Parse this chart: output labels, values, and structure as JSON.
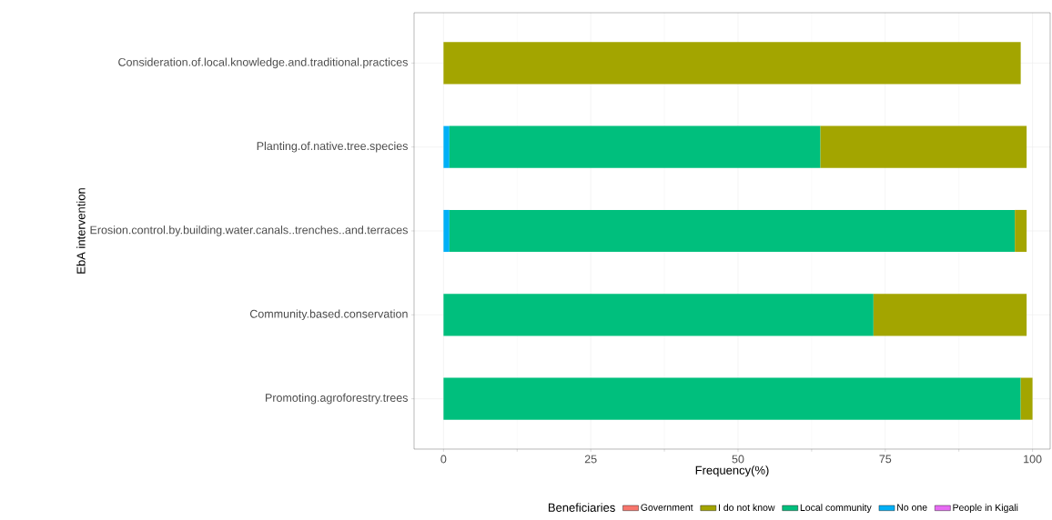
{
  "chart_data": {
    "type": "bar",
    "orientation": "horizontal",
    "stacked": true,
    "xlabel": "Frequency(%)",
    "ylabel": "EbA intervention",
    "legend_title": "Beneficiaries",
    "categories": [
      "Consideration.of.local.knowledge.and.traditional.practices",
      "Planting.of.native.tree.species",
      "Erosion.control.by.building.water.canals..trenches..and.terraces",
      "Community.based.conservation",
      "Promoting.agroforestry.trees"
    ],
    "series": [
      {
        "name": "People in Kigali",
        "color": "#e76bf3",
        "values": [
          null,
          null,
          null,
          null,
          null
        ]
      },
      {
        "name": "No one",
        "color": "#00b0f6",
        "values": [
          null,
          1,
          1,
          null,
          null
        ]
      },
      {
        "name": "Local community",
        "color": "#00bf7d",
        "values": [
          null,
          63,
          96,
          73,
          98
        ]
      },
      {
        "name": "I do not know",
        "color": "#a3a500",
        "values": [
          98,
          35,
          2,
          26,
          2
        ]
      },
      {
        "name": "Government",
        "color": "#f8766d",
        "values": [
          null,
          null,
          null,
          null,
          null
        ]
      }
    ],
    "xlim": [
      -5,
      103
    ],
    "xticks": [
      0,
      25,
      50,
      75,
      100
    ],
    "grid": true,
    "legend": "bottom"
  }
}
